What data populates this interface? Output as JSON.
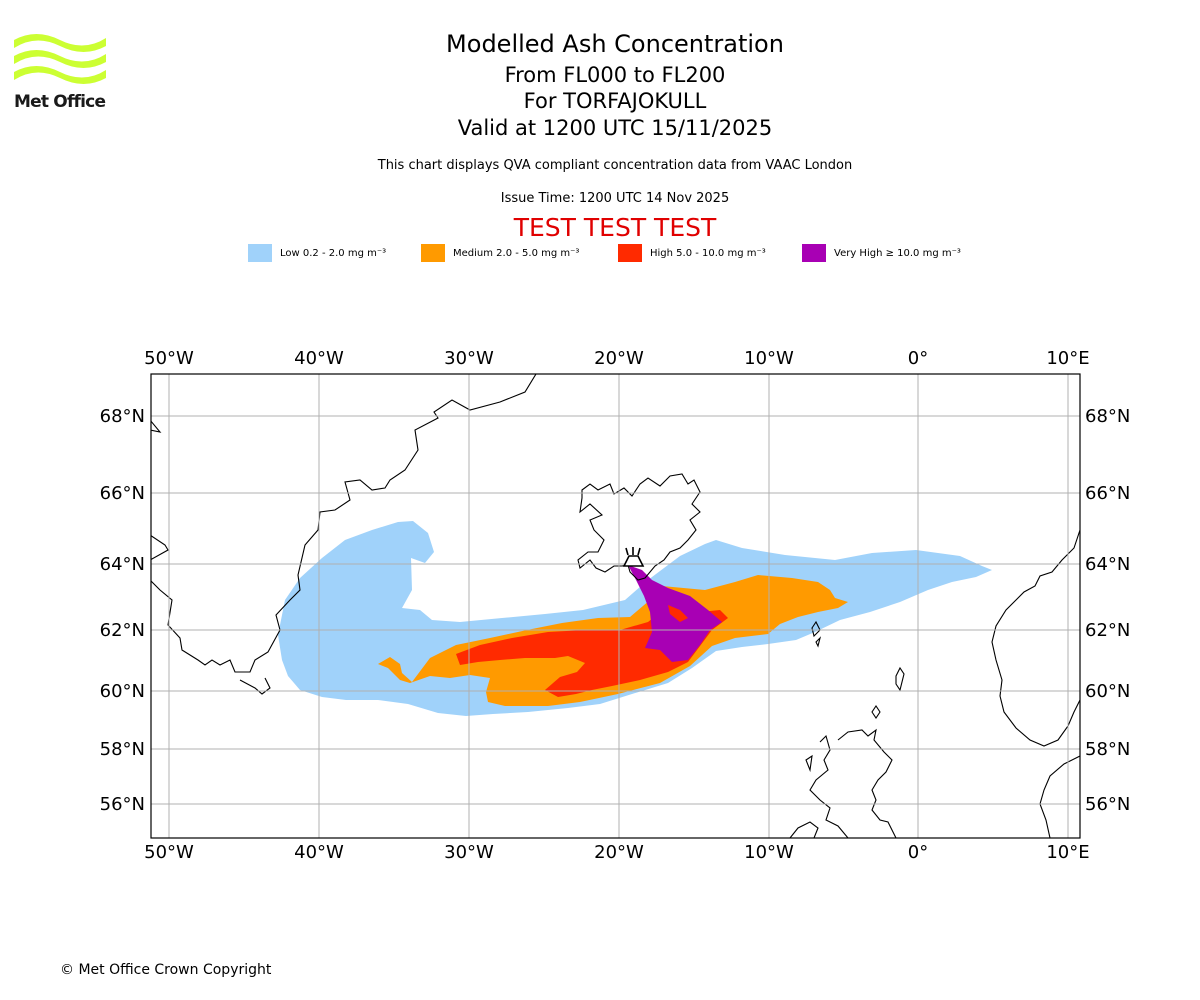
{
  "header": {
    "logo_text": "Met Office",
    "title": "Modelled Ash Concentration",
    "level_range": "From FL000 to FL200",
    "volcano": "For TORFAJOKULL",
    "valid_time": "Valid at 1200 UTC 15/11/2025",
    "source_note": "This chart displays QVA compliant concentration data from VAAC London",
    "issue_time": "Issue Time: 1200 UTC 14 Nov 2025",
    "test_banner": "TEST TEST TEST"
  },
  "legend": [
    {
      "label": "Low 0.2 - 2.0 mg m⁻³",
      "color": "#a0d2fa"
    },
    {
      "label": "Medium 2.0 - 5.0 mg m⁻³",
      "color": "#ff9a00"
    },
    {
      "label": "High 5.0 - 10.0 mg m⁻³",
      "color": "#ff2a00"
    },
    {
      "label": "Very High  ≥  10.0 mg m⁻³",
      "color": "#a800b4"
    }
  ],
  "map": {
    "lon_ticks": [
      "50°W",
      "40°W",
      "30°W",
      "20°W",
      "10°W",
      "0°",
      "10°E"
    ],
    "lat_ticks": [
      "68°N",
      "66°N",
      "64°N",
      "62°N",
      "60°N",
      "58°N",
      "56°N"
    ],
    "volcano_icon": "volcano-icon"
  },
  "footer": {
    "copyright": "© Met Office Crown Copyright"
  },
  "colors": {
    "low": "#a0d2fa",
    "medium": "#ff9a00",
    "high": "#ff2a00",
    "very_high": "#a800b4",
    "grid": "#b0b0b0",
    "logo": "#ccff33",
    "test": "#e00000"
  }
}
